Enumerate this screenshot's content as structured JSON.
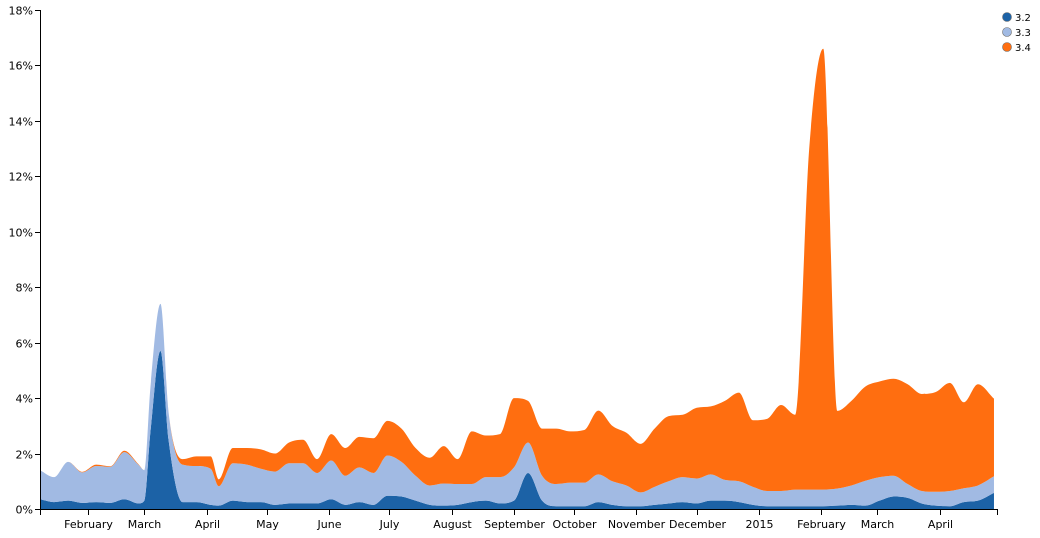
{
  "chart_data": {
    "type": "area",
    "stacked": true,
    "title": "",
    "xlabel": "",
    "ylabel": "",
    "ylim": [
      0,
      18
    ],
    "y_ticks": [
      0,
      2,
      4,
      6,
      8,
      10,
      12,
      14,
      16,
      18
    ],
    "y_tick_format": "percent",
    "x_range": [
      "2014-01-08",
      "2015-04-30"
    ],
    "x_ticks": [
      {
        "label": "February",
        "date": "2014-02-01"
      },
      {
        "label": "March",
        "date": "2014-03-01"
      },
      {
        "label": "April",
        "date": "2014-04-01"
      },
      {
        "label": "May",
        "date": "2014-05-01"
      },
      {
        "label": "June",
        "date": "2014-06-01"
      },
      {
        "label": "July",
        "date": "2014-07-01"
      },
      {
        "label": "August",
        "date": "2014-08-01"
      },
      {
        "label": "September",
        "date": "2014-09-01"
      },
      {
        "label": "October",
        "date": "2014-10-01"
      },
      {
        "label": "November",
        "date": "2014-11-01"
      },
      {
        "label": "December",
        "date": "2014-12-01"
      },
      {
        "label": "2015",
        "date": "2015-01-01"
      },
      {
        "label": "February",
        "date": "2015-02-01"
      },
      {
        "label": "March",
        "date": "2015-03-01"
      },
      {
        "label": "April",
        "date": "2015-04-01"
      }
    ],
    "grid": false,
    "legend": "top-right",
    "series": [
      {
        "name": "3.2",
        "color": "#1c62a6",
        "x": [
          "2014-01-08",
          "2014-01-15",
          "2014-01-22",
          "2014-01-29",
          "2014-02-05",
          "2014-02-12",
          "2014-02-19",
          "2014-02-26",
          "2014-03-01",
          "2014-03-04",
          "2014-03-09",
          "2014-03-13",
          "2014-03-20",
          "2014-03-27",
          "2014-04-03",
          "2014-04-07",
          "2014-04-14",
          "2014-04-21",
          "2014-04-28",
          "2014-05-05",
          "2014-05-12",
          "2014-05-19",
          "2014-05-26",
          "2014-06-02",
          "2014-06-09",
          "2014-06-16",
          "2014-06-23",
          "2014-06-30",
          "2014-07-07",
          "2014-07-14",
          "2014-07-21",
          "2014-07-28",
          "2014-08-04",
          "2014-08-11",
          "2014-08-18",
          "2014-08-25",
          "2014-09-01",
          "2014-09-08",
          "2014-09-15",
          "2014-09-22",
          "2014-09-29",
          "2014-10-06",
          "2014-10-13",
          "2014-10-20",
          "2014-10-27",
          "2014-11-03",
          "2014-11-10",
          "2014-11-17",
          "2014-11-24",
          "2014-12-01",
          "2014-12-08",
          "2014-12-15",
          "2014-12-22",
          "2014-12-29",
          "2015-01-05",
          "2015-01-12",
          "2015-01-19",
          "2015-01-26",
          "2015-02-02",
          "2015-02-09",
          "2015-02-16",
          "2015-02-23",
          "2015-03-02",
          "2015-03-09",
          "2015-03-16",
          "2015-03-23",
          "2015-03-30",
          "2015-04-06",
          "2015-04-13",
          "2015-04-20",
          "2015-04-28"
        ],
        "values": [
          0.35,
          0.25,
          0.3,
          0.22,
          0.25,
          0.22,
          0.35,
          0.2,
          0.3,
          2.8,
          5.7,
          2.5,
          0.25,
          0.25,
          0.15,
          0.12,
          0.3,
          0.25,
          0.25,
          0.15,
          0.2,
          0.2,
          0.2,
          0.35,
          0.15,
          0.25,
          0.15,
          0.48,
          0.45,
          0.3,
          0.15,
          0.12,
          0.15,
          0.25,
          0.3,
          0.2,
          0.3,
          1.3,
          0.3,
          0.1,
          0.1,
          0.1,
          0.25,
          0.15,
          0.1,
          0.1,
          0.15,
          0.2,
          0.25,
          0.2,
          0.3,
          0.3,
          0.25,
          0.15,
          0.1,
          0.1,
          0.1,
          0.1,
          0.1,
          0.12,
          0.15,
          0.12,
          0.3,
          0.45,
          0.4,
          0.2,
          0.12,
          0.1,
          0.25,
          0.3,
          0.58
        ]
      },
      {
        "name": "3.3",
        "color": "#a1bae3",
        "x": [
          "2014-01-08",
          "2014-01-15",
          "2014-01-22",
          "2014-01-29",
          "2014-02-05",
          "2014-02-12",
          "2014-02-19",
          "2014-02-26",
          "2014-03-01",
          "2014-03-04",
          "2014-03-09",
          "2014-03-13",
          "2014-03-20",
          "2014-03-27",
          "2014-04-03",
          "2014-04-07",
          "2014-04-14",
          "2014-04-21",
          "2014-04-28",
          "2014-05-05",
          "2014-05-12",
          "2014-05-19",
          "2014-05-26",
          "2014-06-02",
          "2014-06-09",
          "2014-06-16",
          "2014-06-23",
          "2014-06-30",
          "2014-07-07",
          "2014-07-14",
          "2014-07-21",
          "2014-07-28",
          "2014-08-04",
          "2014-08-11",
          "2014-08-18",
          "2014-08-25",
          "2014-09-01",
          "2014-09-08",
          "2014-09-15",
          "2014-09-22",
          "2014-09-29",
          "2014-10-06",
          "2014-10-13",
          "2014-10-20",
          "2014-10-27",
          "2014-11-03",
          "2014-11-10",
          "2014-11-17",
          "2014-11-24",
          "2014-12-01",
          "2014-12-08",
          "2014-12-15",
          "2014-12-22",
          "2014-12-29",
          "2015-01-05",
          "2015-01-12",
          "2015-01-19",
          "2015-01-26",
          "2015-02-02",
          "2015-02-09",
          "2015-02-16",
          "2015-02-23",
          "2015-03-02",
          "2015-03-09",
          "2015-03-16",
          "2015-03-23",
          "2015-03-30",
          "2015-04-06",
          "2015-04-13",
          "2015-04-20",
          "2015-04-28"
        ],
        "values": [
          1.05,
          0.9,
          1.4,
          1.1,
          1.3,
          1.3,
          1.7,
          1.4,
          1.1,
          1.6,
          1.7,
          1.0,
          1.35,
          1.3,
          1.3,
          0.7,
          1.35,
          1.35,
          1.2,
          1.2,
          1.45,
          1.45,
          1.1,
          1.4,
          1.05,
          1.25,
          1.15,
          1.45,
          1.25,
          0.9,
          0.7,
          0.8,
          0.75,
          0.65,
          0.85,
          0.95,
          1.2,
          1.1,
          0.9,
          0.8,
          0.85,
          0.85,
          1.0,
          0.85,
          0.75,
          0.5,
          0.65,
          0.8,
          0.9,
          0.9,
          0.95,
          0.75,
          0.75,
          0.65,
          0.55,
          0.55,
          0.6,
          0.6,
          0.6,
          0.62,
          0.7,
          0.9,
          0.85,
          0.75,
          0.5,
          0.45,
          0.5,
          0.55,
          0.5,
          0.55,
          0.6
        ]
      },
      {
        "name": "3.4",
        "color": "#ff6e10",
        "x": [
          "2014-01-08",
          "2014-01-15",
          "2014-01-22",
          "2014-01-29",
          "2014-02-05",
          "2014-02-12",
          "2014-02-19",
          "2014-02-26",
          "2014-03-01",
          "2014-03-04",
          "2014-03-09",
          "2014-03-13",
          "2014-03-20",
          "2014-03-27",
          "2014-04-03",
          "2014-04-07",
          "2014-04-14",
          "2014-04-21",
          "2014-04-28",
          "2014-05-05",
          "2014-05-12",
          "2014-05-19",
          "2014-05-26",
          "2014-06-02",
          "2014-06-09",
          "2014-06-16",
          "2014-06-23",
          "2014-06-30",
          "2014-07-07",
          "2014-07-14",
          "2014-07-21",
          "2014-07-28",
          "2014-08-04",
          "2014-08-11",
          "2014-08-18",
          "2014-08-25",
          "2014-09-01",
          "2014-09-08",
          "2014-09-15",
          "2014-09-22",
          "2014-09-29",
          "2014-10-06",
          "2014-10-13",
          "2014-10-20",
          "2014-10-27",
          "2014-11-03",
          "2014-11-10",
          "2014-11-17",
          "2014-11-24",
          "2014-12-01",
          "2014-12-08",
          "2014-12-15",
          "2014-12-22",
          "2014-12-29",
          "2015-01-05",
          "2015-01-12",
          "2015-01-19",
          "2015-01-26",
          "2015-02-02",
          "2015-02-09",
          "2015-02-16",
          "2015-02-23",
          "2015-03-02",
          "2015-03-09",
          "2015-03-16",
          "2015-03-23",
          "2015-03-30",
          "2015-04-06",
          "2015-04-13",
          "2015-04-20",
          "2015-04-28"
        ],
        "values": [
          0,
          0,
          0,
          0.02,
          0.05,
          0.02,
          0.05,
          0.02,
          0,
          0,
          0,
          0,
          0.2,
          0.35,
          0.45,
          0.25,
          0.55,
          0.6,
          0.7,
          0.65,
          0.75,
          0.85,
          0.5,
          0.95,
          1.0,
          1.1,
          1.25,
          1.25,
          1.2,
          1.0,
          1.0,
          1.35,
          0.9,
          1.9,
          1.5,
          1.55,
          2.5,
          1.5,
          1.7,
          2.0,
          1.85,
          1.9,
          2.3,
          2.0,
          1.9,
          1.75,
          2.1,
          2.35,
          2.25,
          2.55,
          2.45,
          2.85,
          3.2,
          2.4,
          2.6,
          3.1,
          2.7,
          12.3,
          15.9,
          2.8,
          3.05,
          3.4,
          3.45,
          3.5,
          3.6,
          3.5,
          3.6,
          3.9,
          3.1,
          3.65,
          2.8
        ]
      }
    ]
  }
}
